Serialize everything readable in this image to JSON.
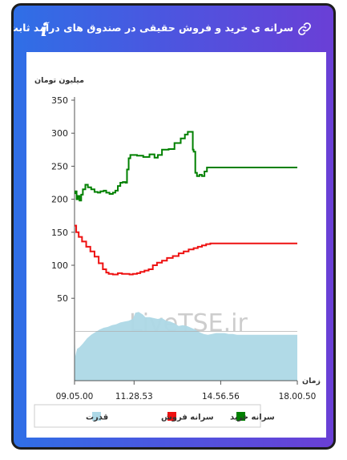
{
  "header": {
    "title": "سرانه ی خرید و فروش حقیقی در صندوق های درآمد ثابت",
    "info_icon": "info-icon",
    "link_icon": "link-icon"
  },
  "watermark": "LiveTSE.ir",
  "chart_data": {
    "type": "line",
    "ylabel": "میلیون تومان",
    "xlabel": "زمان",
    "ylim": [
      0,
      350
    ],
    "yticks": [
      50,
      100,
      150,
      200,
      250,
      300,
      350
    ],
    "x_tick_labels": [
      "09.05.00",
      "11.28.53",
      "14.56.56",
      "18.00.50"
    ],
    "x_ticks": [
      0,
      143,
      351,
      535
    ],
    "xlim": [
      0,
      535
    ],
    "legend_position": "bottom",
    "series": [
      {
        "name": "سرانه خرید",
        "color": "#008000",
        "points": [
          [
            0,
            209
          ],
          [
            2,
            212
          ],
          [
            5,
            200
          ],
          [
            8,
            205
          ],
          [
            12,
            198
          ],
          [
            16,
            207
          ],
          [
            20,
            215
          ],
          [
            26,
            222
          ],
          [
            32,
            218
          ],
          [
            40,
            215
          ],
          [
            48,
            211
          ],
          [
            56,
            210
          ],
          [
            62,
            212
          ],
          [
            70,
            213
          ],
          [
            76,
            210
          ],
          [
            84,
            208
          ],
          [
            92,
            210
          ],
          [
            98,
            213
          ],
          [
            104,
            220
          ],
          [
            110,
            225
          ],
          [
            116,
            226
          ],
          [
            122,
            225
          ],
          [
            126,
            245
          ],
          [
            130,
            262
          ],
          [
            134,
            267
          ],
          [
            150,
            266
          ],
          [
            165,
            264
          ],
          [
            180,
            268
          ],
          [
            192,
            263
          ],
          [
            200,
            267
          ],
          [
            210,
            275
          ],
          [
            226,
            276
          ],
          [
            240,
            285
          ],
          [
            255,
            292
          ],
          [
            265,
            298
          ],
          [
            272,
            302
          ],
          [
            282,
            302
          ],
          [
            284,
            275
          ],
          [
            286,
            272
          ],
          [
            290,
            240
          ],
          [
            294,
            235
          ],
          [
            300,
            237
          ],
          [
            306,
            235
          ],
          [
            312,
            242
          ],
          [
            318,
            248
          ],
          [
            535,
            248
          ]
        ]
      },
      {
        "name": "سرانه فروش",
        "color": "#ee1111",
        "points": [
          [
            0,
            160
          ],
          [
            4,
            150
          ],
          [
            10,
            143
          ],
          [
            18,
            136
          ],
          [
            28,
            128
          ],
          [
            38,
            121
          ],
          [
            48,
            113
          ],
          [
            58,
            103
          ],
          [
            68,
            94
          ],
          [
            76,
            89
          ],
          [
            82,
            87
          ],
          [
            92,
            86
          ],
          [
            104,
            88
          ],
          [
            114,
            87
          ],
          [
            124,
            87
          ],
          [
            132,
            86
          ],
          [
            140,
            87
          ],
          [
            150,
            88
          ],
          [
            158,
            90
          ],
          [
            168,
            92
          ],
          [
            178,
            94
          ],
          [
            188,
            100
          ],
          [
            198,
            104
          ],
          [
            210,
            107
          ],
          [
            222,
            111
          ],
          [
            236,
            114
          ],
          [
            250,
            118
          ],
          [
            262,
            121
          ],
          [
            274,
            124
          ],
          [
            286,
            126
          ],
          [
            296,
            128
          ],
          [
            306,
            130
          ],
          [
            316,
            132
          ],
          [
            326,
            133
          ],
          [
            535,
            133
          ]
        ]
      },
      {
        "name": "قدرت",
        "color": "#add8e6",
        "type": "area",
        "baseline": 0,
        "points": [
          [
            0,
            0
          ],
          [
            2,
            -28
          ],
          [
            6,
            -20
          ],
          [
            12,
            -18
          ],
          [
            20,
            -14
          ],
          [
            30,
            -8
          ],
          [
            40,
            -4
          ],
          [
            50,
            -1
          ],
          [
            60,
            2
          ],
          [
            70,
            4
          ],
          [
            80,
            5
          ],
          [
            90,
            7
          ],
          [
            100,
            8
          ],
          [
            110,
            10
          ],
          [
            120,
            11
          ],
          [
            130,
            12
          ],
          [
            140,
            14
          ],
          [
            146,
            21
          ],
          [
            154,
            22
          ],
          [
            164,
            19
          ],
          [
            170,
            16
          ],
          [
            180,
            16
          ],
          [
            190,
            15
          ],
          [
            200,
            14
          ],
          [
            210,
            15
          ],
          [
            220,
            12
          ],
          [
            230,
            11
          ],
          [
            240,
            9
          ],
          [
            250,
            6
          ],
          [
            260,
            7
          ],
          [
            270,
            6
          ],
          [
            280,
            4
          ],
          [
            290,
            2
          ],
          [
            300,
            -1
          ],
          [
            310,
            -3
          ],
          [
            320,
            -4
          ],
          [
            330,
            -3
          ],
          [
            340,
            -2
          ],
          [
            350,
            -2
          ],
          [
            360,
            -2
          ],
          [
            370,
            -3
          ],
          [
            380,
            -3
          ],
          [
            390,
            -4
          ],
          [
            400,
            -4
          ],
          [
            420,
            -4
          ],
          [
            440,
            -4
          ],
          [
            460,
            -4
          ],
          [
            480,
            -4
          ],
          [
            500,
            -4
          ],
          [
            520,
            -4
          ],
          [
            535,
            -4
          ]
        ]
      }
    ]
  }
}
